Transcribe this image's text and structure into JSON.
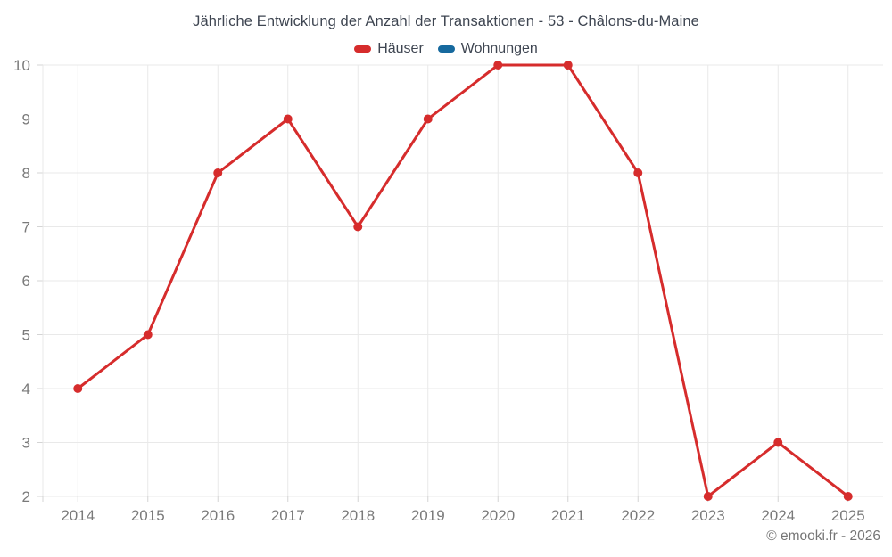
{
  "chart_data": {
    "type": "line",
    "title": "Jährliche Entwicklung der Anzahl der Transaktionen - 53 - Châlons-du-Maine",
    "credit": "© emooki.fr - 2026",
    "categories": [
      "2014",
      "2015",
      "2016",
      "2017",
      "2018",
      "2019",
      "2020",
      "2021",
      "2022",
      "2023",
      "2024",
      "2025"
    ],
    "series": [
      {
        "name": "Häuser",
        "color": "#d62c2c",
        "values": [
          4,
          5,
          8,
          9,
          7,
          9,
          10,
          10,
          8,
          2,
          3,
          2
        ]
      },
      {
        "name": "Wohnungen",
        "color": "#16699e",
        "values": []
      }
    ],
    "xlabel": "",
    "ylabel": "",
    "ylim": [
      2,
      10
    ],
    "yticks": [
      2,
      3,
      4,
      5,
      6,
      7,
      8,
      9,
      10
    ],
    "grid": true,
    "legend_position": "top",
    "marker_radius": 5,
    "line_width": 3,
    "colors": {
      "grid": "#e9e9e9",
      "tick": "#d4d4d4",
      "axis_label": "#7a7a7a",
      "title": "#3e4551",
      "credit": "#757575"
    }
  }
}
